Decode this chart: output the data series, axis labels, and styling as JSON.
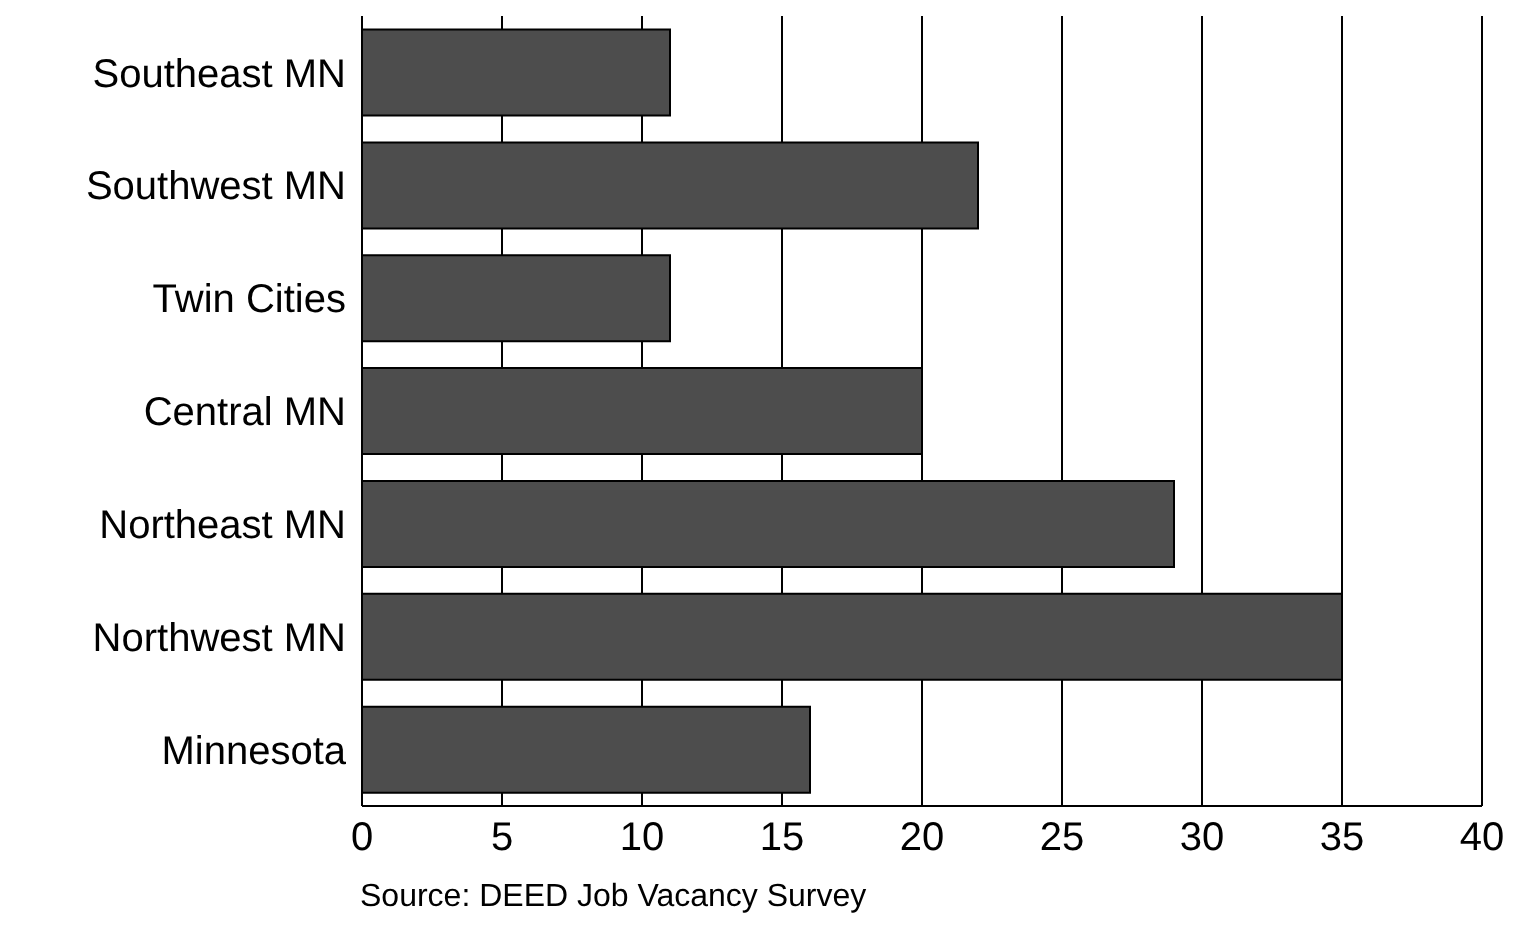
{
  "chart_data": {
    "type": "bar",
    "orientation": "horizontal",
    "categories": [
      "Southeast MN",
      "Southwest MN",
      "Twin Cities",
      "Central MN",
      "Northeast MN",
      "Northwest MN",
      "Minnesota"
    ],
    "values": [
      11,
      22,
      11,
      20,
      29,
      35,
      16
    ],
    "color": "#4d4d4d",
    "xlim": [
      0,
      40
    ],
    "xticks": [
      0,
      5,
      10,
      15,
      20,
      25,
      30,
      35,
      40
    ],
    "grid": "x",
    "annotations": [
      "Source: DEED Job Vacancy Survey"
    ]
  }
}
